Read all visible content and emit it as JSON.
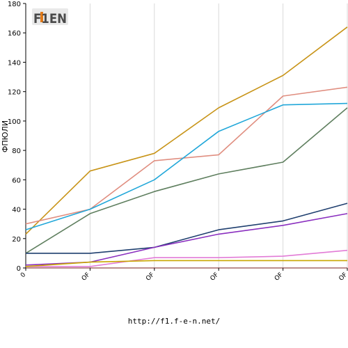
{
  "chart_data": {
    "type": "line",
    "ylabel": "ФПЮЛИ",
    "ylim": [
      0,
      180
    ],
    "yticks": [
      0,
      20,
      40,
      60,
      80,
      100,
      120,
      140,
      160,
      180
    ],
    "categories": [
      "0",
      "OF",
      "OF",
      "OF",
      "OF",
      "OF"
    ],
    "grid": true,
    "series": [
      {
        "color": "#c89418",
        "values": [
          23,
          66,
          78,
          109,
          131,
          164
        ]
      },
      {
        "color": "#e08e80",
        "values": [
          30,
          40,
          73,
          77,
          117,
          123
        ]
      },
      {
        "color": "#21a7d9",
        "values": [
          26,
          40,
          60,
          93,
          111,
          112
        ]
      },
      {
        "color": "#5f7f5f",
        "values": [
          10,
          37,
          52,
          64,
          72,
          109
        ]
      },
      {
        "color": "#1f3f6f",
        "values": [
          10,
          10,
          14,
          26,
          32,
          44
        ]
      },
      {
        "color": "#8a2fbf",
        "values": [
          2,
          4,
          14,
          23,
          29,
          37
        ]
      },
      {
        "color": "#e27bd6",
        "values": [
          1,
          1,
          7,
          7,
          8,
          12
        ]
      },
      {
        "color": "#c9a600",
        "values": [
          1,
          4,
          5,
          5,
          5,
          5
        ]
      }
    ]
  },
  "logo": {
    "text": "F1EN",
    "accent": "#e07a1a"
  },
  "footer": {
    "url": "http://f1.f-e-n.net/"
  }
}
